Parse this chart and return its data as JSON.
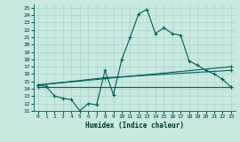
{
  "xlabel": "Humidex (Indice chaleur)",
  "xlim": [
    -0.5,
    23.5
  ],
  "ylim": [
    11,
    25.5
  ],
  "yticks": [
    11,
    12,
    13,
    14,
    15,
    16,
    17,
    18,
    19,
    20,
    21,
    22,
    23,
    24,
    25
  ],
  "xticks": [
    0,
    1,
    2,
    3,
    4,
    5,
    6,
    7,
    8,
    9,
    10,
    11,
    12,
    13,
    14,
    15,
    16,
    17,
    18,
    19,
    20,
    21,
    22,
    23
  ],
  "bg_color": "#c8e8e0",
  "grid_color": "#aad4cc",
  "line_color": "#006060",
  "line1_x": [
    0,
    1,
    2,
    3,
    4,
    5,
    6,
    7,
    8,
    9,
    10,
    11,
    12,
    13,
    14,
    15,
    16,
    17,
    18,
    19,
    20,
    21,
    22,
    23
  ],
  "line1_y": [
    14.5,
    14.3,
    13.0,
    12.7,
    12.5,
    11.0,
    12.0,
    11.8,
    16.5,
    13.2,
    18.0,
    21.0,
    24.2,
    24.8,
    21.5,
    22.3,
    21.5,
    21.3,
    17.8,
    17.2,
    16.5,
    16.0,
    15.3,
    14.2
  ],
  "line2_x": [
    0,
    23
  ],
  "line2_y": [
    14.5,
    17.0
  ],
  "line3_x": [
    0,
    8,
    23
  ],
  "line3_y": [
    14.5,
    15.5,
    16.5
  ],
  "line4_x": [
    0,
    23
  ],
  "line4_y": [
    14.2,
    14.2
  ]
}
